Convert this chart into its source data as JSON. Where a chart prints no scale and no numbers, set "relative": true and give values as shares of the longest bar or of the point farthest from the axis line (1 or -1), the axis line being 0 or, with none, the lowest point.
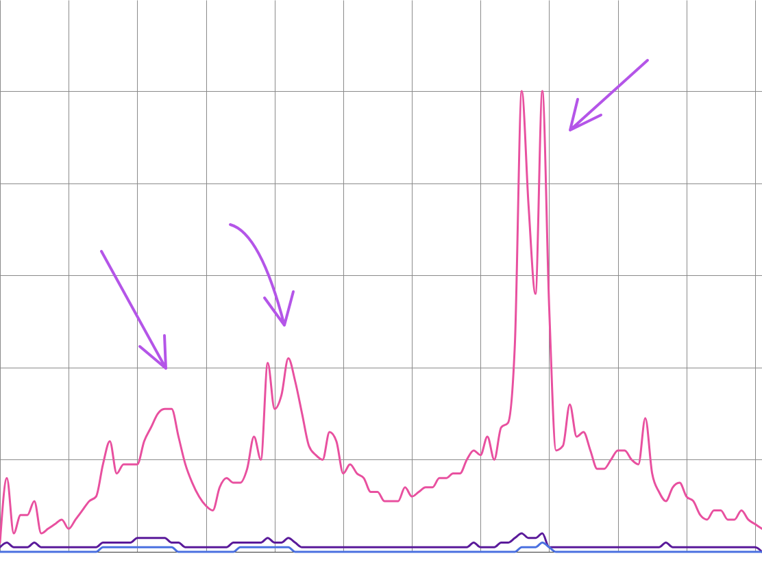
{
  "chart_data": {
    "type": "line",
    "relative": true,
    "grid": true,
    "tick_labels": false,
    "categories": [
      null,
      null,
      null,
      null,
      null,
      null,
      null,
      null,
      null,
      null,
      null,
      null,
      null,
      null,
      null,
      null,
      null,
      null,
      null,
      null,
      null,
      null,
      null,
      null,
      null,
      null,
      null,
      null,
      null,
      null,
      null,
      null,
      null,
      null,
      null,
      null,
      null,
      null,
      null,
      null,
      null,
      null,
      null,
      null,
      null,
      null,
      null,
      null,
      null,
      null,
      null,
      null,
      null,
      null,
      null,
      null,
      null,
      null,
      null,
      null,
      null,
      null,
      null,
      null,
      null,
      null,
      null,
      null,
      null,
      null,
      null,
      null,
      null,
      null,
      null,
      null,
      null,
      null,
      null,
      null,
      null,
      null,
      null,
      null,
      null,
      null,
      null,
      null,
      null,
      null,
      null,
      null,
      null,
      null,
      null,
      null,
      null,
      null,
      null,
      null,
      null,
      null,
      null,
      null,
      null,
      null,
      null,
      null,
      null,
      null,
      null,
      null
    ],
    "series": [
      {
        "color": "#e8509f",
        "values": [
          0.02,
          0.16,
          0.04,
          0.08,
          0.08,
          0.11,
          0.04,
          0.05,
          0.06,
          0.07,
          0.05,
          0.07,
          0.09,
          0.11,
          0.12,
          0.19,
          0.24,
          0.17,
          0.19,
          0.19,
          0.19,
          0.24,
          0.27,
          0.3,
          0.31,
          0.31,
          0.25,
          0.19,
          0.15,
          0.12,
          0.1,
          0.09,
          0.14,
          0.16,
          0.15,
          0.15,
          0.18,
          0.25,
          0.2,
          0.41,
          0.31,
          0.34,
          0.42,
          0.37,
          0.3,
          0.23,
          0.21,
          0.2,
          0.26,
          0.24,
          0.17,
          0.19,
          0.17,
          0.16,
          0.13,
          0.13,
          0.11,
          0.11,
          0.11,
          0.14,
          0.12,
          0.13,
          0.14,
          0.14,
          0.16,
          0.16,
          0.17,
          0.17,
          0.2,
          0.22,
          0.21,
          0.25,
          0.2,
          0.27,
          0.28,
          0.45,
          1.0,
          0.75,
          0.56,
          1.0,
          0.53,
          0.22,
          0.23,
          0.32,
          0.25,
          0.26,
          0.22,
          0.18,
          0.18,
          0.2,
          0.22,
          0.22,
          0.2,
          0.19,
          0.29,
          0.17,
          0.13,
          0.11,
          0.14,
          0.15,
          0.12,
          0.11,
          0.08,
          0.07,
          0.09,
          0.09,
          0.07,
          0.07,
          0.09,
          0.07,
          0.06,
          0.05
        ]
      },
      {
        "color": "#5a1a9a",
        "values": [
          0.01,
          0.02,
          0.01,
          0.01,
          0.01,
          0.02,
          0.01,
          0.01,
          0.01,
          0.01,
          0.01,
          0.01,
          0.01,
          0.01,
          0.01,
          0.02,
          0.02,
          0.02,
          0.02,
          0.02,
          0.03,
          0.03,
          0.03,
          0.03,
          0.03,
          0.02,
          0.02,
          0.01,
          0.01,
          0.01,
          0.01,
          0.01,
          0.01,
          0.01,
          0.02,
          0.02,
          0.02,
          0.02,
          0.02,
          0.03,
          0.02,
          0.02,
          0.03,
          0.02,
          0.01,
          0.01,
          0.01,
          0.01,
          0.01,
          0.01,
          0.01,
          0.01,
          0.01,
          0.01,
          0.01,
          0.01,
          0.01,
          0.01,
          0.01,
          0.01,
          0.01,
          0.01,
          0.01,
          0.01,
          0.01,
          0.01,
          0.01,
          0.01,
          0.01,
          0.02,
          0.01,
          0.01,
          0.01,
          0.02,
          0.02,
          0.03,
          0.04,
          0.03,
          0.03,
          0.04,
          0.01,
          0.01,
          0.01,
          0.01,
          0.01,
          0.01,
          0.01,
          0.01,
          0.01,
          0.01,
          0.01,
          0.01,
          0.01,
          0.01,
          0.01,
          0.01,
          0.01,
          0.02,
          0.01,
          0.01,
          0.01,
          0.01,
          0.01,
          0.01,
          0.01,
          0.01,
          0.01,
          0.01,
          0.01,
          0.01,
          0.01,
          0.0
        ]
      },
      {
        "color": "#4a70e0",
        "values": [
          0.0,
          0.0,
          0.0,
          0.0,
          0.0,
          0.0,
          0.0,
          0.0,
          0.0,
          0.0,
          0.0,
          0.0,
          0.0,
          0.0,
          0.0,
          0.01,
          0.01,
          0.01,
          0.01,
          0.01,
          0.01,
          0.01,
          0.01,
          0.01,
          0.01,
          0.01,
          0.0,
          0.0,
          0.0,
          0.0,
          0.0,
          0.0,
          0.0,
          0.0,
          0.0,
          0.01,
          0.01,
          0.01,
          0.01,
          0.01,
          0.01,
          0.01,
          0.01,
          0.0,
          0.0,
          0.0,
          0.0,
          0.0,
          0.0,
          0.0,
          0.0,
          0.0,
          0.0,
          0.0,
          0.0,
          0.0,
          0.0,
          0.0,
          0.0,
          0.0,
          0.0,
          0.0,
          0.0,
          0.0,
          0.0,
          0.0,
          0.0,
          0.0,
          0.0,
          0.0,
          0.0,
          0.0,
          0.0,
          0.0,
          0.0,
          0.0,
          0.01,
          0.01,
          0.01,
          0.02,
          0.01,
          0.0,
          0.0,
          0.0,
          0.0,
          0.0,
          0.0,
          0.0,
          0.0,
          0.0,
          0.0,
          0.0,
          0.0,
          0.0,
          0.0,
          0.0,
          0.0,
          0.0,
          0.0,
          0.0,
          0.0,
          0.0,
          0.0,
          0.0,
          0.0,
          0.0,
          0.0,
          0.0,
          0.0,
          0.0,
          0.0,
          0.0
        ]
      }
    ]
  }
}
